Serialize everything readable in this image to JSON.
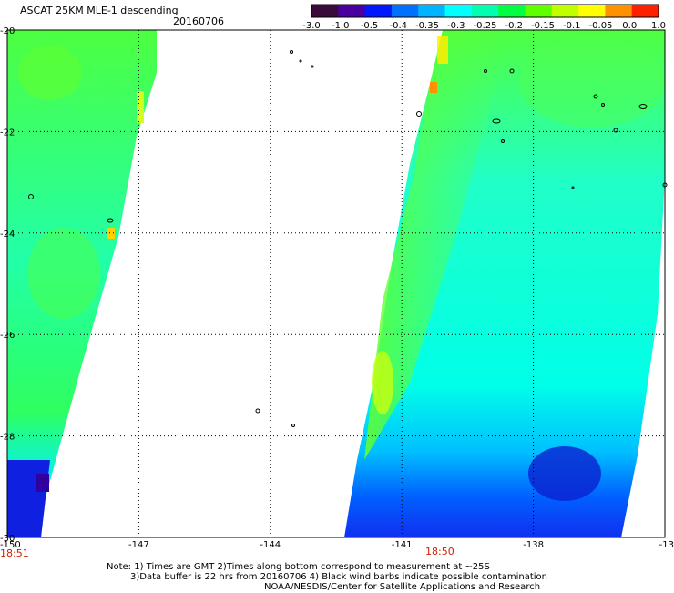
{
  "header": {
    "title": "ASCAT 25KM MLE-1 descending",
    "date": "20160706"
  },
  "colorbar": {
    "labels": [
      "-3.0",
      "-1.0",
      "-0.5",
      "-0.4",
      "-0.35",
      "-0.3",
      "-0.25",
      "-0.2",
      "-0.15",
      "-0.1",
      "-0.05",
      "0.0",
      "1.0"
    ],
    "colors": [
      "#3a0a3a",
      "#4a00a0",
      "#0018ff",
      "#0070ff",
      "#00b4ff",
      "#00ffff",
      "#00ffb0",
      "#00ff40",
      "#60ff00",
      "#c0ff00",
      "#ffff00",
      "#ff9000",
      "#ff2000"
    ]
  },
  "map": {
    "lon_labels": [
      "-150",
      "-147",
      "-144",
      "-141",
      "-138",
      "-13"
    ],
    "lat_labels": [
      "-20",
      "-22",
      "-24",
      "-26",
      "-28",
      "-30"
    ],
    "lon_range": [
      -150,
      -135
    ],
    "lat_range": [
      -30,
      -20
    ],
    "grid": true
  },
  "time_labels": {
    "left": "18:51",
    "center": "18:50"
  },
  "notes": {
    "line1": "Note: 1) Times are GMT 2)Times along bottom correspond to measurement at ~25S",
    "line2": "3)Data buffer is 22 hrs from 20160706 4) Black wind barbs indicate possible contamination",
    "line3": "NOAA/NESDIS/Center for Satellite Applications and Research"
  }
}
